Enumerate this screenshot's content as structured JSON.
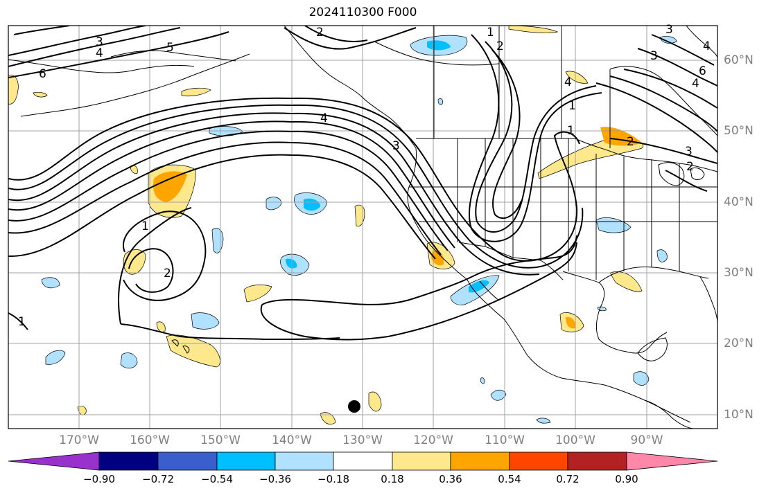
{
  "title": "2024110300 F000",
  "lat_labels": [
    "60°N",
    "50°N",
    "40°N",
    "30°N",
    "20°N",
    "10°N"
  ],
  "lon_labels": [
    "170°W",
    "160°W",
    "150°W",
    "140°W",
    "130°W",
    "120°W",
    "110°W",
    "100°W",
    "90°W"
  ],
  "colorbar": {
    "tick_labels": [
      "−0.90",
      "−0.72",
      "−0.54",
      "−0.36",
      "−0.18",
      "0.18",
      "0.36",
      "0.54",
      "0.72",
      "0.90"
    ],
    "colors": [
      "#9932cc",
      "#000080",
      "#3a5fcd",
      "#00bfff",
      "#b0e2ff",
      "#ffffff",
      "#fee88c",
      "#ffa500",
      "#ff4500",
      "#b22222",
      "#ff88aa"
    ]
  },
  "contour_labels": [
    "3",
    "4",
    "5",
    "6",
    "2",
    "1",
    "2",
    "4",
    "3",
    "1",
    "4",
    "1",
    "3",
    "2",
    "1",
    "2",
    "1",
    "2",
    "3",
    "4",
    "6",
    "4",
    "3"
  ],
  "colors": {
    "contour": "#000000",
    "grid": "#a0a0a0",
    "coast": "#000000",
    "axis_label": "#7f7f7f"
  },
  "marker": {
    "type": "filled-circle",
    "color": "#000000"
  }
}
